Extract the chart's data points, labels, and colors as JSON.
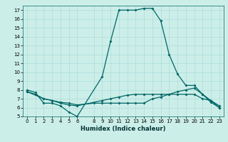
{
  "xlabel": "Humidex (Indice chaleur)",
  "bg_color": "#cceee8",
  "grid_color": "#aadddd",
  "line_color": "#006666",
  "xlim": [
    -0.5,
    23.5
  ],
  "ylim": [
    5,
    17.5
  ],
  "yticks": [
    5,
    6,
    7,
    8,
    9,
    10,
    11,
    12,
    13,
    14,
    15,
    16,
    17
  ],
  "xticks": [
    0,
    1,
    2,
    3,
    4,
    5,
    6,
    8,
    9,
    10,
    11,
    12,
    13,
    14,
    15,
    16,
    17,
    18,
    19,
    20,
    21,
    22,
    23
  ],
  "line1_x": [
    0,
    1,
    2,
    3,
    4,
    5,
    6,
    9,
    10,
    11,
    12,
    13,
    14,
    15,
    16,
    17,
    18,
    19,
    20,
    21,
    22,
    23
  ],
  "line1_y": [
    8.0,
    7.7,
    6.5,
    6.5,
    6.2,
    5.5,
    5.0,
    9.5,
    13.5,
    17.0,
    17.0,
    17.0,
    17.2,
    17.2,
    15.8,
    12.0,
    9.8,
    8.5,
    8.5,
    7.5,
    6.6,
    6.0
  ],
  "line2_x": [
    0,
    1,
    2,
    3,
    4,
    5,
    6,
    8,
    9,
    10,
    11,
    12,
    13,
    14,
    15,
    16,
    17,
    18,
    19,
    20,
    21,
    22,
    23
  ],
  "line2_y": [
    7.8,
    7.5,
    7.0,
    6.8,
    6.6,
    6.5,
    6.3,
    6.5,
    6.5,
    6.5,
    6.5,
    6.5,
    6.5,
    6.5,
    7.0,
    7.2,
    7.5,
    7.8,
    8.0,
    8.2,
    7.5,
    6.8,
    6.2
  ],
  "line3_x": [
    0,
    2,
    3,
    4,
    5,
    6,
    9,
    10,
    11,
    12,
    13,
    14,
    15,
    16,
    17,
    18,
    19,
    20,
    21,
    22,
    23
  ],
  "line3_y": [
    7.8,
    7.0,
    6.8,
    6.5,
    6.3,
    6.2,
    6.8,
    7.0,
    7.2,
    7.4,
    7.5,
    7.5,
    7.5,
    7.5,
    7.5,
    7.5,
    7.5,
    7.5,
    7.0,
    6.8,
    6.0
  ],
  "xlabel_fontsize": 6,
  "tick_fontsize": 5
}
